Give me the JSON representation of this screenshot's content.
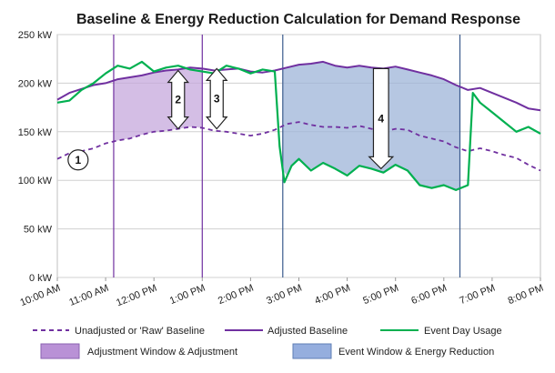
{
  "chart_data": {
    "type": "line",
    "title": "Baseline  & Energy Reduction Calculation for Demand Response",
    "xlabel": "",
    "ylabel": "",
    "ylim": [
      0,
      250
    ],
    "yunit": "kW",
    "y_ticks": [
      "0 kW",
      "50 kW",
      "100 kW",
      "150 kW",
      "200 kW",
      "250 kW"
    ],
    "x_ticks": [
      "10:00 AM",
      "11:00 AM",
      "12:00 PM",
      "1:00 PM",
      "2:00 PM",
      "3:00 PM",
      "4:00 PM",
      "5:00 PM",
      "6:00 PM",
      "7:00 PM",
      "8:00 PM"
    ],
    "xlim_hours": [
      10,
      20
    ],
    "grid": "horizontal",
    "colors": {
      "raw": "#7030a0",
      "adjusted": "#7030a0",
      "event": "#00b050",
      "adjustment_fill": "#c5a8dc",
      "event_fill": "#9db4d8",
      "adjust_line": "#7030a0",
      "event_line": "#3a5a8c"
    },
    "adjustment_window": {
      "start": "11:10 AM",
      "end": "1:00 PM"
    },
    "event_window": {
      "start": "2:40 PM",
      "end": "6:20 PM"
    },
    "series": [
      {
        "name": "Unadjusted or 'Raw' Baseline",
        "style": "dashed",
        "x": [
          10.0,
          10.25,
          10.5,
          10.75,
          11.0,
          11.25,
          11.5,
          11.75,
          12.0,
          12.25,
          12.5,
          12.75,
          13.0,
          13.25,
          13.5,
          13.75,
          14.0,
          14.25,
          14.5,
          14.75,
          15.0,
          15.25,
          15.5,
          15.75,
          16.0,
          16.25,
          16.5,
          16.75,
          17.0,
          17.25,
          17.5,
          17.75,
          18.0,
          18.25,
          18.5,
          18.75,
          19.0,
          19.25,
          19.5,
          19.75,
          20.0
        ],
        "values": [
          122,
          128,
          130,
          133,
          138,
          141,
          143,
          147,
          150,
          151,
          153,
          155,
          154,
          151,
          150,
          148,
          146,
          148,
          152,
          158,
          160,
          157,
          155,
          155,
          154,
          156,
          153,
          150,
          153,
          152,
          146,
          143,
          140,
          134,
          130,
          133,
          130,
          126,
          123,
          116,
          110
        ]
      },
      {
        "name": "Adjusted Baseline",
        "style": "solid",
        "x": [
          10.0,
          10.25,
          10.5,
          10.75,
          11.0,
          11.25,
          11.5,
          11.75,
          12.0,
          12.25,
          12.5,
          12.75,
          13.0,
          13.25,
          13.5,
          13.75,
          14.0,
          14.25,
          14.5,
          14.75,
          15.0,
          15.25,
          15.5,
          15.75,
          16.0,
          16.25,
          16.5,
          16.75,
          17.0,
          17.25,
          17.5,
          17.75,
          18.0,
          18.25,
          18.5,
          18.75,
          19.0,
          19.25,
          19.5,
          19.75,
          20.0
        ],
        "values": [
          183,
          190,
          194,
          198,
          200,
          204,
          206,
          208,
          211,
          213,
          214,
          216,
          215,
          213,
          214,
          215,
          212,
          211,
          213,
          216,
          219,
          220,
          222,
          218,
          216,
          218,
          216,
          215,
          217,
          214,
          211,
          208,
          204,
          198,
          193,
          195,
          190,
          185,
          180,
          174,
          172
        ]
      },
      {
        "name": "Event Day Usage",
        "style": "solid",
        "x": [
          10.0,
          10.25,
          10.5,
          10.75,
          11.0,
          11.25,
          11.5,
          11.75,
          12.0,
          12.25,
          12.5,
          12.75,
          13.0,
          13.25,
          13.5,
          13.75,
          14.0,
          14.25,
          14.5,
          14.6,
          14.7,
          14.85,
          15.0,
          15.25,
          15.5,
          15.75,
          16.0,
          16.25,
          16.5,
          16.75,
          17.0,
          17.25,
          17.5,
          17.75,
          18.0,
          18.25,
          18.5,
          18.6,
          18.75,
          19.0,
          19.25,
          19.5,
          19.75,
          20.0
        ],
        "values": [
          180,
          182,
          193,
          200,
          210,
          218,
          215,
          222,
          212,
          216,
          218,
          214,
          212,
          210,
          218,
          215,
          210,
          214,
          212,
          135,
          98,
          115,
          122,
          110,
          118,
          112,
          105,
          115,
          112,
          108,
          116,
          110,
          95,
          92,
          95,
          90,
          95,
          190,
          180,
          170,
          160,
          150,
          155,
          148
        ]
      }
    ],
    "callouts": [
      "1",
      "2",
      "3",
      "4"
    ],
    "legend": {
      "raw": "Unadjusted or 'Raw' Baseline",
      "adjusted": "Adjusted Baseline",
      "event": "Event Day Usage",
      "adjustment": "Adjustment Window & Adjustment",
      "event_window": "Event Window & Energy Reduction"
    }
  }
}
